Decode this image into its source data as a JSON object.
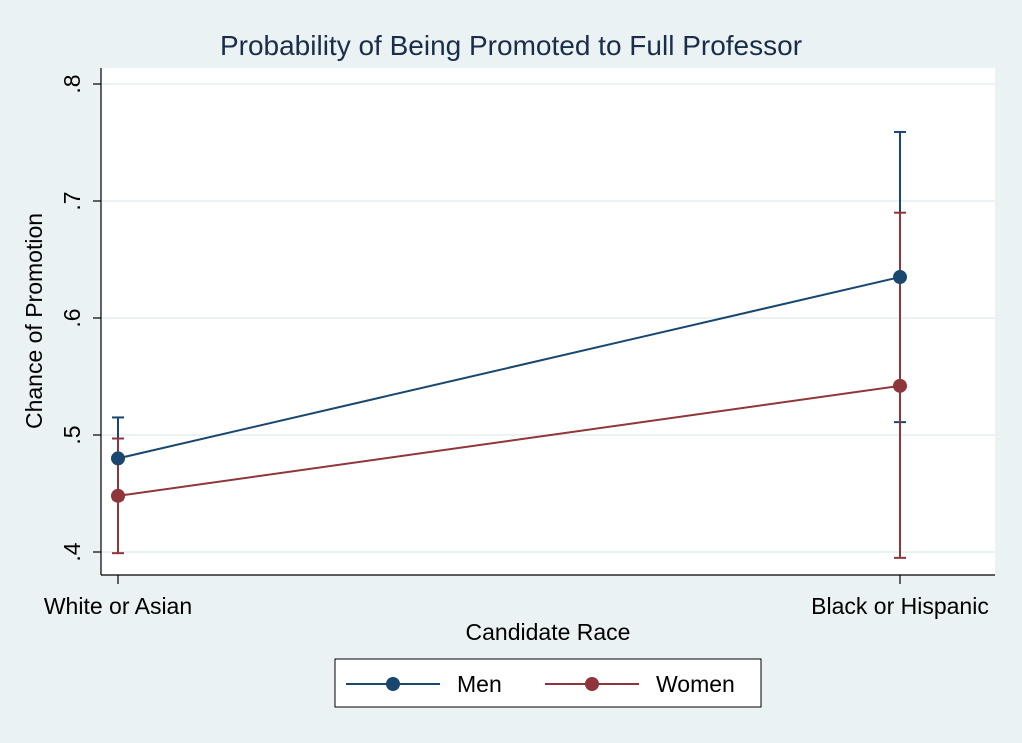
{
  "chart_data": {
    "type": "line",
    "title": "Probability of Being Promoted to Full Professor",
    "xlabel": "Candidate Race",
    "ylabel": "Chance of Promotion",
    "categories": [
      "White or Asian",
      "Black or Hispanic"
    ],
    "ylim": [
      0.4,
      0.8
    ],
    "yticks": [
      {
        "value": 0.4,
        "label": ".4"
      },
      {
        "value": 0.5,
        "label": ".5"
      },
      {
        "value": 0.6,
        "label": ".6"
      },
      {
        "value": 0.7,
        "label": ".7"
      },
      {
        "value": 0.8,
        "label": ".8"
      }
    ],
    "grid": true,
    "legend_position": "bottom",
    "series": [
      {
        "name": "Men",
        "color": "#1a476f",
        "values": [
          0.48,
          0.635
        ],
        "ci_low": [
          0.445,
          0.511
        ],
        "ci_high": [
          0.515,
          0.759
        ]
      },
      {
        "name": "Women",
        "color": "#90353b",
        "values": [
          0.448,
          0.542
        ],
        "ci_low": [
          0.399,
          0.395
        ],
        "ci_high": [
          0.497,
          0.69
        ]
      }
    ]
  }
}
